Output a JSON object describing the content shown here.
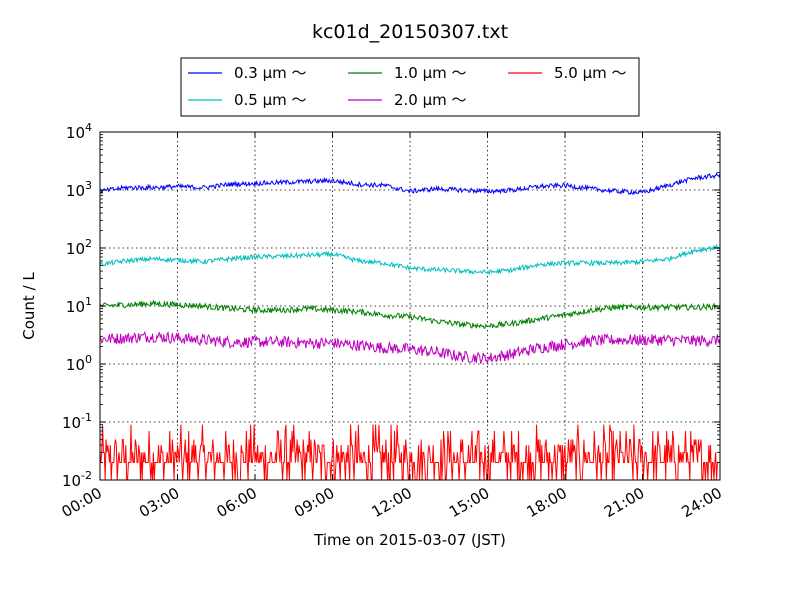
{
  "chart_data": {
    "type": "line",
    "title": "kc01d_20150307.txt",
    "xlabel": "Time on 2015-03-07 (JST)",
    "ylabel": "Count / L",
    "yscale": "log",
    "ylim": [
      0.01,
      10000
    ],
    "y_ticks": [
      {
        "value": 0.01,
        "base": "10",
        "exp": "-2"
      },
      {
        "value": 0.1,
        "base": "10",
        "exp": "-1"
      },
      {
        "value": 1,
        "base": "10",
        "exp": "0"
      },
      {
        "value": 10,
        "base": "10",
        "exp": "1"
      },
      {
        "value": 100,
        "base": "10",
        "exp": "2"
      },
      {
        "value": 1000,
        "base": "10",
        "exp": "3"
      },
      {
        "value": 10000,
        "base": "10",
        "exp": "4"
      }
    ],
    "xlim_hours": [
      0,
      24
    ],
    "x_ticks": [
      {
        "hour": 0,
        "label": "00:00"
      },
      {
        "hour": 3,
        "label": "03:00"
      },
      {
        "hour": 6,
        "label": "06:00"
      },
      {
        "hour": 9,
        "label": "09:00"
      },
      {
        "hour": 12,
        "label": "12:00"
      },
      {
        "hour": 15,
        "label": "15:00"
      },
      {
        "hour": 18,
        "label": "18:00"
      },
      {
        "hour": 21,
        "label": "21:00"
      },
      {
        "hour": 24,
        "label": "24:00"
      }
    ],
    "grid": true,
    "legend_position": "top",
    "series": [
      {
        "name": "0.3 μm ～",
        "color": "#0000ff",
        "noise": 0.04,
        "hours": [
          0,
          1,
          2,
          3,
          4,
          5,
          6,
          7,
          8,
          9,
          10,
          11,
          12,
          13,
          14,
          15,
          16,
          17,
          18,
          19,
          20,
          21,
          22,
          23,
          24
        ],
        "values": [
          950,
          1100,
          1100,
          1150,
          1100,
          1250,
          1300,
          1350,
          1400,
          1450,
          1250,
          1200,
          950,
          1050,
          1000,
          950,
          1000,
          1150,
          1200,
          1050,
          950,
          900,
          1200,
          1600,
          1800
        ]
      },
      {
        "name": "0.5 μm ～",
        "color": "#00bfbf",
        "noise": 0.04,
        "hours": [
          0,
          1,
          2,
          3,
          4,
          5,
          6,
          7,
          8,
          9,
          10,
          11,
          12,
          13,
          14,
          15,
          16,
          17,
          18,
          19,
          20,
          21,
          22,
          23,
          24
        ],
        "values": [
          52,
          60,
          65,
          62,
          58,
          65,
          70,
          72,
          75,
          78,
          60,
          55,
          45,
          42,
          40,
          38,
          42,
          52,
          55,
          55,
          55,
          58,
          65,
          90,
          105
        ]
      },
      {
        "name": "1.0 μm ～",
        "color": "#008000",
        "noise": 0.05,
        "hours": [
          0,
          1,
          2,
          3,
          4,
          5,
          6,
          7,
          8,
          9,
          10,
          11,
          12,
          13,
          14,
          15,
          16,
          17,
          18,
          19,
          20,
          21,
          22,
          23,
          24
        ],
        "values": [
          10,
          10.5,
          11,
          10.5,
          10,
          9,
          8.5,
          8.5,
          9,
          8.5,
          8,
          7,
          6.5,
          5.5,
          4.8,
          4.5,
          5,
          6,
          7,
          8.5,
          9.5,
          9.5,
          9.5,
          9.5,
          9.8
        ]
      },
      {
        "name": "2.0 μm ～",
        "color": "#bf00bf",
        "noise": 0.1,
        "hours": [
          0,
          1,
          2,
          3,
          4,
          5,
          6,
          7,
          8,
          9,
          10,
          11,
          12,
          13,
          14,
          15,
          16,
          17,
          18,
          19,
          20,
          21,
          22,
          23,
          24
        ],
        "values": [
          2.7,
          2.8,
          3,
          2.8,
          2.6,
          2.4,
          2.4,
          2.4,
          2.3,
          2.3,
          2.1,
          1.9,
          1.8,
          1.6,
          1.35,
          1.25,
          1.5,
          1.9,
          2.2,
          2.5,
          2.6,
          2.6,
          2.6,
          2.5,
          2.6
        ]
      },
      {
        "name": "5.0 μm ～",
        "color": "#ff0000",
        "noise": 0,
        "hours": [
          0,
          24
        ],
        "values": [
          0.02,
          0.02
        ],
        "discrete_levels": [
          0.01,
          0.02,
          0.03,
          0.04,
          0.05,
          0.07,
          0.09
        ],
        "level_weights": [
          0.2,
          0.38,
          0.18,
          0.1,
          0.06,
          0.05,
          0.03
        ]
      }
    ]
  }
}
